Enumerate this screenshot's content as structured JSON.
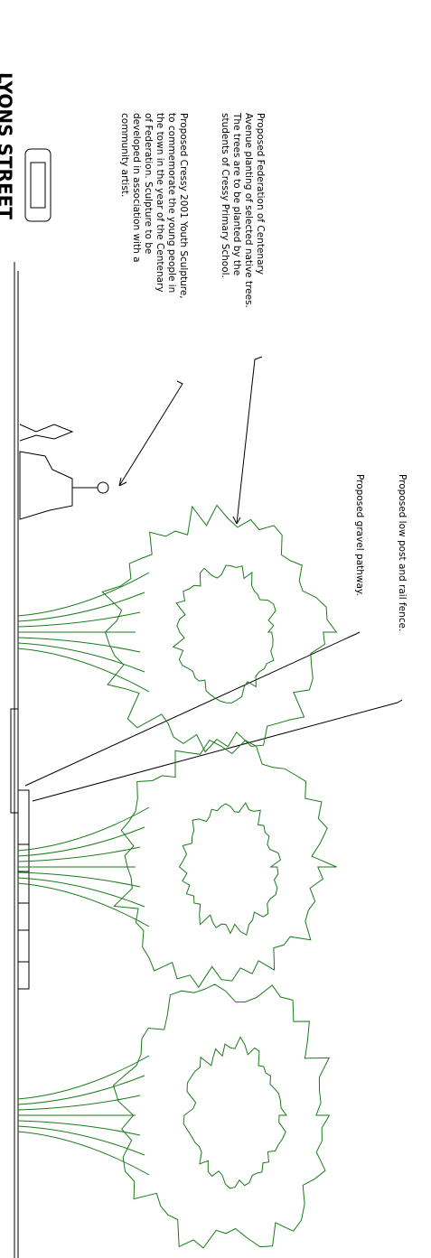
{
  "street": "LYONS STREET",
  "annotations": {
    "avenue": [
      "Proposed Federation of Centenary",
      "Avenue planting of selected native trees.",
      "The trees are to be planted by the",
      "students of Cressy Primary School."
    ],
    "sculpture": [
      "Proposed Cressy 2001 Youth Sculpture,",
      "to commemorate the young people in",
      "the town in the year of the Centenary",
      "of Federation.  Sculpture to be",
      "developed in association with a",
      "community artist."
    ],
    "fence": "Proposed low post and rail fence.",
    "pathway": "Proposed gravel pathway."
  }
}
